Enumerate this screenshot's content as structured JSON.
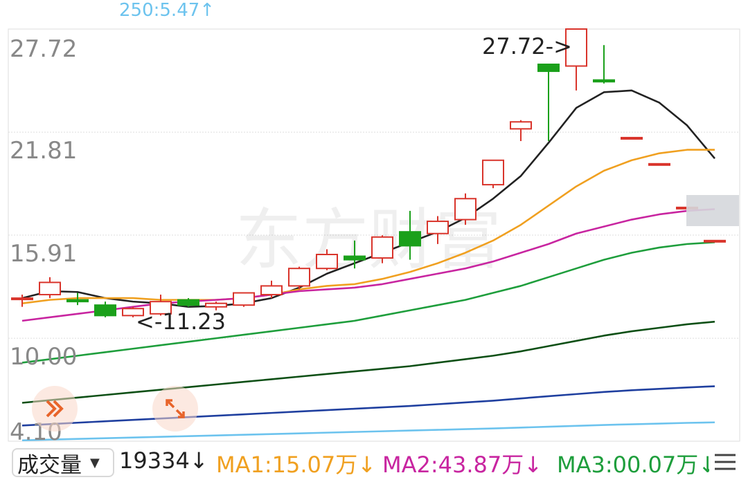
{
  "top_indicator": "250:5.47↑",
  "chart_data": {
    "type": "candlestick",
    "y_ticks": [
      "27.72",
      "21.81",
      "15.91",
      "10.00",
      "4.10"
    ],
    "y_tick_values": [
      27.72,
      21.81,
      15.91,
      10.0,
      4.1
    ],
    "ylim": [
      4.1,
      27.72
    ],
    "grid": true,
    "max_label": "27.72->",
    "min_label": "<-11.23",
    "candles": [
      {
        "o": 12.3,
        "h": 12.5,
        "l": 11.8,
        "c": 12.3
      },
      {
        "o": 12.5,
        "h": 13.5,
        "l": 12.3,
        "c": 13.2
      },
      {
        "o": 12.2,
        "h": 12.6,
        "l": 11.9,
        "c": 12.1
      },
      {
        "o": 11.9,
        "h": 12.1,
        "l": 11.2,
        "c": 11.3
      },
      {
        "o": 11.3,
        "h": 11.8,
        "l": 11.2,
        "c": 11.7
      },
      {
        "o": 11.4,
        "h": 12.5,
        "l": 11.3,
        "c": 12.1
      },
      {
        "o": 12.2,
        "h": 12.3,
        "l": 11.8,
        "c": 11.9
      },
      {
        "o": 11.8,
        "h": 12.1,
        "l": 11.6,
        "c": 12.0
      },
      {
        "o": 11.9,
        "h": 12.6,
        "l": 11.8,
        "c": 12.6
      },
      {
        "o": 12.5,
        "h": 13.3,
        "l": 12.3,
        "c": 13.0
      },
      {
        "o": 13.0,
        "h": 14.1,
        "l": 12.8,
        "c": 14.0
      },
      {
        "o": 14.0,
        "h": 15.1,
        "l": 13.9,
        "c": 14.8
      },
      {
        "o": 14.7,
        "h": 15.6,
        "l": 14.0,
        "c": 14.5
      },
      {
        "o": 14.6,
        "h": 15.9,
        "l": 14.3,
        "c": 15.8
      },
      {
        "o": 16.1,
        "h": 17.3,
        "l": 14.5,
        "c": 15.3
      },
      {
        "o": 16.0,
        "h": 17.0,
        "l": 15.4,
        "c": 16.7
      },
      {
        "o": 16.8,
        "h": 18.3,
        "l": 16.5,
        "c": 18.0
      },
      {
        "o": 18.8,
        "h": 20.2,
        "l": 18.6,
        "c": 20.2
      },
      {
        "o": 22.0,
        "h": 22.5,
        "l": 21.3,
        "c": 22.4
      },
      {
        "o": 25.7,
        "h": 25.5,
        "l": 21.3,
        "c": 25.3
      },
      {
        "o": 25.6,
        "h": 27.72,
        "l": 24.2,
        "c": 27.72
      },
      {
        "o": 24.8,
        "h": 26.8,
        "l": 24.6,
        "c": 24.7
      },
      {
        "o": 21.5,
        "h": 21.5,
        "l": 21.5,
        "c": 21.5
      },
      {
        "o": 20.0,
        "h": 20.0,
        "l": 20.0,
        "c": 20.0
      },
      {
        "o": 17.5,
        "h": 17.5,
        "l": 17.5,
        "c": 17.5
      },
      {
        "o": 15.6,
        "h": 15.6,
        "l": 15.6,
        "c": 15.6
      }
    ],
    "series": [
      {
        "color": "#222222",
        "values": [
          12.3,
          12.7,
          12.65,
          12.3,
          12.1,
          12.0,
          11.8,
          11.85,
          12.0,
          12.3,
          12.9,
          13.7,
          14.3,
          14.9,
          15.5,
          16.1,
          16.9,
          18.0,
          19.3,
          21.2,
          23.2,
          24.1,
          24.2,
          23.5,
          22.2,
          20.3
        ]
      },
      {
        "color": "#f0a020",
        "values": [
          12.0,
          12.2,
          12.3,
          12.3,
          12.3,
          12.2,
          12.2,
          12.2,
          12.3,
          12.5,
          12.8,
          13.0,
          13.1,
          13.4,
          13.8,
          14.3,
          14.9,
          15.6,
          16.5,
          17.6,
          18.7,
          19.6,
          20.2,
          20.6,
          20.8,
          20.8
        ]
      },
      {
        "color": "#c825a0",
        "values": [
          11.0,
          11.2,
          11.4,
          11.6,
          11.8,
          12.0,
          12.1,
          12.2,
          12.3,
          12.5,
          12.7,
          12.8,
          12.9,
          13.1,
          13.4,
          13.7,
          14.0,
          14.4,
          14.9,
          15.4,
          16.0,
          16.4,
          16.8,
          17.1,
          17.3,
          17.4
        ]
      },
      {
        "color": "#1e9e3c",
        "values": [
          8.6,
          8.8,
          9.0,
          9.2,
          9.4,
          9.6,
          9.8,
          10.0,
          10.2,
          10.4,
          10.6,
          10.8,
          11.0,
          11.3,
          11.6,
          11.9,
          12.2,
          12.6,
          13.0,
          13.5,
          14.0,
          14.5,
          14.9,
          15.2,
          15.4,
          15.5
        ]
      },
      {
        "color": "#0d4f15",
        "values": [
          6.3,
          6.45,
          6.6,
          6.75,
          6.9,
          7.05,
          7.2,
          7.35,
          7.5,
          7.65,
          7.8,
          7.95,
          8.1,
          8.25,
          8.4,
          8.6,
          8.8,
          9.0,
          9.25,
          9.55,
          9.85,
          10.15,
          10.4,
          10.6,
          10.8,
          10.95
        ]
      },
      {
        "color": "#1f3f9f",
        "values": [
          5.0,
          5.08,
          5.16,
          5.24,
          5.32,
          5.4,
          5.48,
          5.56,
          5.64,
          5.72,
          5.8,
          5.88,
          5.96,
          6.04,
          6.12,
          6.22,
          6.32,
          6.42,
          6.55,
          6.68,
          6.8,
          6.92,
          7.02,
          7.1,
          7.18,
          7.25
        ]
      },
      {
        "color": "#6cc3ee",
        "values": [
          4.15,
          4.19,
          4.23,
          4.27,
          4.31,
          4.35,
          4.39,
          4.43,
          4.47,
          4.51,
          4.55,
          4.59,
          4.63,
          4.67,
          4.71,
          4.75,
          4.79,
          4.83,
          4.88,
          4.93,
          4.98,
          5.03,
          5.07,
          5.11,
          5.15,
          5.18
        ]
      }
    ]
  },
  "bottom_bar": {
    "volume_select_label": "成交量",
    "volume_value": "19334↓",
    "ma1": "MA1:15.07万↓",
    "ma2": "MA2:43.87万↓",
    "ma3": "MA3:00.07万↓"
  },
  "colors": {
    "up": "#d9342b",
    "down": "#1aa01a",
    "grid": "#dddddd",
    "tick": "#888888"
  }
}
